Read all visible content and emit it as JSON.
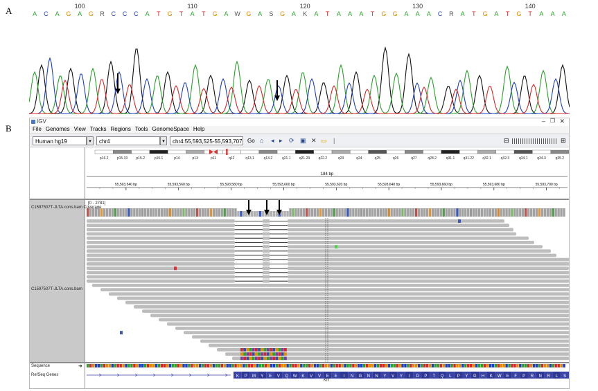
{
  "figure": {
    "panel_a_label": "A",
    "panel_b_label": "B"
  },
  "sequence_strip": {
    "bases": [
      "A",
      "C",
      "A",
      "G",
      "A",
      "G",
      "R",
      "C",
      "C",
      "C",
      "A",
      "T",
      "G",
      "T",
      "A",
      "T",
      "G",
      "A",
      "W",
      "G",
      "A",
      "S",
      "G",
      "A",
      "K",
      "A",
      "T",
      "A",
      "A",
      "A",
      "T",
      "G",
      "G",
      "A",
      "A",
      "A",
      "C",
      "R",
      "A",
      "T",
      "G",
      "A",
      "T",
      "G",
      "T",
      "A",
      "A",
      "A"
    ],
    "position_labels": [
      "100",
      "110",
      "120",
      "130",
      "140"
    ]
  },
  "igv": {
    "window_title": "IGV",
    "menu": [
      "File",
      "Genomes",
      "View",
      "Tracks",
      "Regions",
      "Tools",
      "GenomeSpace",
      "Help"
    ],
    "genome_select": "Human hg19",
    "chromosome_select": "chr4",
    "locus_input": "chr4:55,593,525-55,593,707",
    "go_label": "Go",
    "cytobands": [
      "p16.2",
      "p15.33",
      "p15.2",
      "p15.1",
      "p14",
      "p13",
      "p11",
      "q12",
      "q13.1",
      "q13.2",
      "q21.1",
      "q21.23",
      "q22.2",
      "q23",
      "q24",
      "q25",
      "q26",
      "q27",
      "q28.2",
      "q31.1",
      "q31.22",
      "q32.1",
      "q32.3",
      "q34.1",
      "q34.3",
      "q35.2"
    ],
    "span_label": "184 bp",
    "ruler_ticks": [
      "55,593,540 bp",
      "55,593,560 bp",
      "55,593,580 bp",
      "55,593,600 bp",
      "55,593,620 bp",
      "55,593,640 bp",
      "55,593,660 bp",
      "55,593,680 bp",
      "55,593,700 bp"
    ],
    "coverage_track_name": "C1597507T-JLTA.cons.bam Coverage",
    "coverage_range": "[0 - 2781]",
    "alignment_track_name": "C1597507T-JLTA.cons.bam",
    "sequence_label": "Sequence",
    "refseq_label": "RefSeq Genes",
    "gene_name": "KIT",
    "amino_acids": [
      "K",
      "P",
      "M",
      "Y",
      "E",
      "V",
      "Q",
      "W",
      "K",
      "V",
      "V",
      "E",
      "E",
      "I",
      "N",
      "G",
      "N",
      "N",
      "Y",
      "V",
      "Y",
      "I",
      "D",
      "P",
      "T",
      "Q",
      "L",
      "P",
      "Y",
      "D",
      "H",
      "K",
      "W",
      "E",
      "F",
      "P",
      "R",
      "N",
      "R",
      "L",
      "S"
    ]
  },
  "colors": {
    "A": "#2ca02c",
    "C": "#1f3fbf",
    "G": "#e08b00",
    "T": "#d62728",
    "read_gray": "#bdbdbd",
    "amino_blue": "#3a43a6"
  }
}
